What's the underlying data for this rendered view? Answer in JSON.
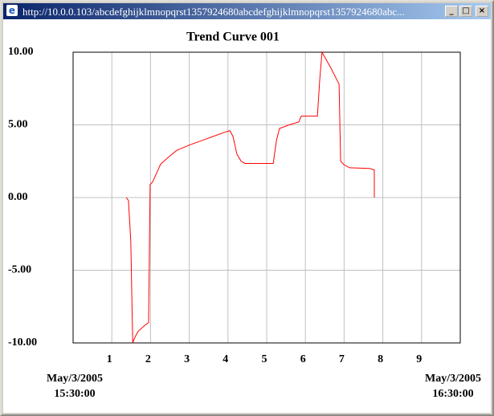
{
  "window": {
    "title": "http://10.0.0.103/abcdefghijklmnopqrst1357924680abcdefghijklmnopqrst1357924680abc..."
  },
  "chart_data": {
    "type": "line",
    "title": "Trend Curve 001",
    "color": "#ff0000",
    "grid": true,
    "xlim": [
      0,
      10
    ],
    "xticks": [
      1,
      2,
      3,
      4,
      5,
      6,
      7,
      8,
      9
    ],
    "ylim": [
      -10,
      10
    ],
    "yticks": [
      {
        "value": 10,
        "label": "10.00"
      },
      {
        "value": 5,
        "label": "5.00"
      },
      {
        "value": 0,
        "label": "0.00"
      },
      {
        "value": -5,
        "label": "-5.00"
      },
      {
        "value": -10,
        "label": "-10.00"
      }
    ],
    "range_labels": [
      {
        "date": "May/3/2005",
        "time": "15:30:00"
      },
      {
        "date": "May/3/2005",
        "time": "16:30:00"
      }
    ],
    "x": [
      1.37,
      1.43,
      1.49,
      1.54,
      1.6,
      1.68,
      1.85,
      1.95,
      1.99,
      2.05,
      2.16,
      2.26,
      2.47,
      2.68,
      2.99,
      3.3,
      3.61,
      3.92,
      4.05,
      4.13,
      4.23,
      4.34,
      4.44,
      5.17,
      5.25,
      5.33,
      5.58,
      5.83,
      5.89,
      6.31,
      6.37,
      6.43,
      6.66,
      6.87,
      6.91,
      7.0,
      7.14,
      7.66,
      7.78,
      7.78
    ],
    "values": [
      0,
      -0.2,
      -3,
      -10,
      -9.6,
      -9.2,
      -8.8,
      -8.6,
      0.9,
      1.05,
      1.7,
      2.3,
      2.8,
      3.25,
      3.6,
      3.9,
      4.2,
      4.5,
      4.6,
      4.2,
      3.0,
      2.5,
      2.35,
      2.35,
      3.9,
      4.75,
      5.0,
      5.2,
      5.6,
      5.6,
      8.1,
      10,
      8.9,
      7.8,
      2.5,
      2.25,
      2.05,
      2.0,
      1.9,
      0
    ]
  }
}
